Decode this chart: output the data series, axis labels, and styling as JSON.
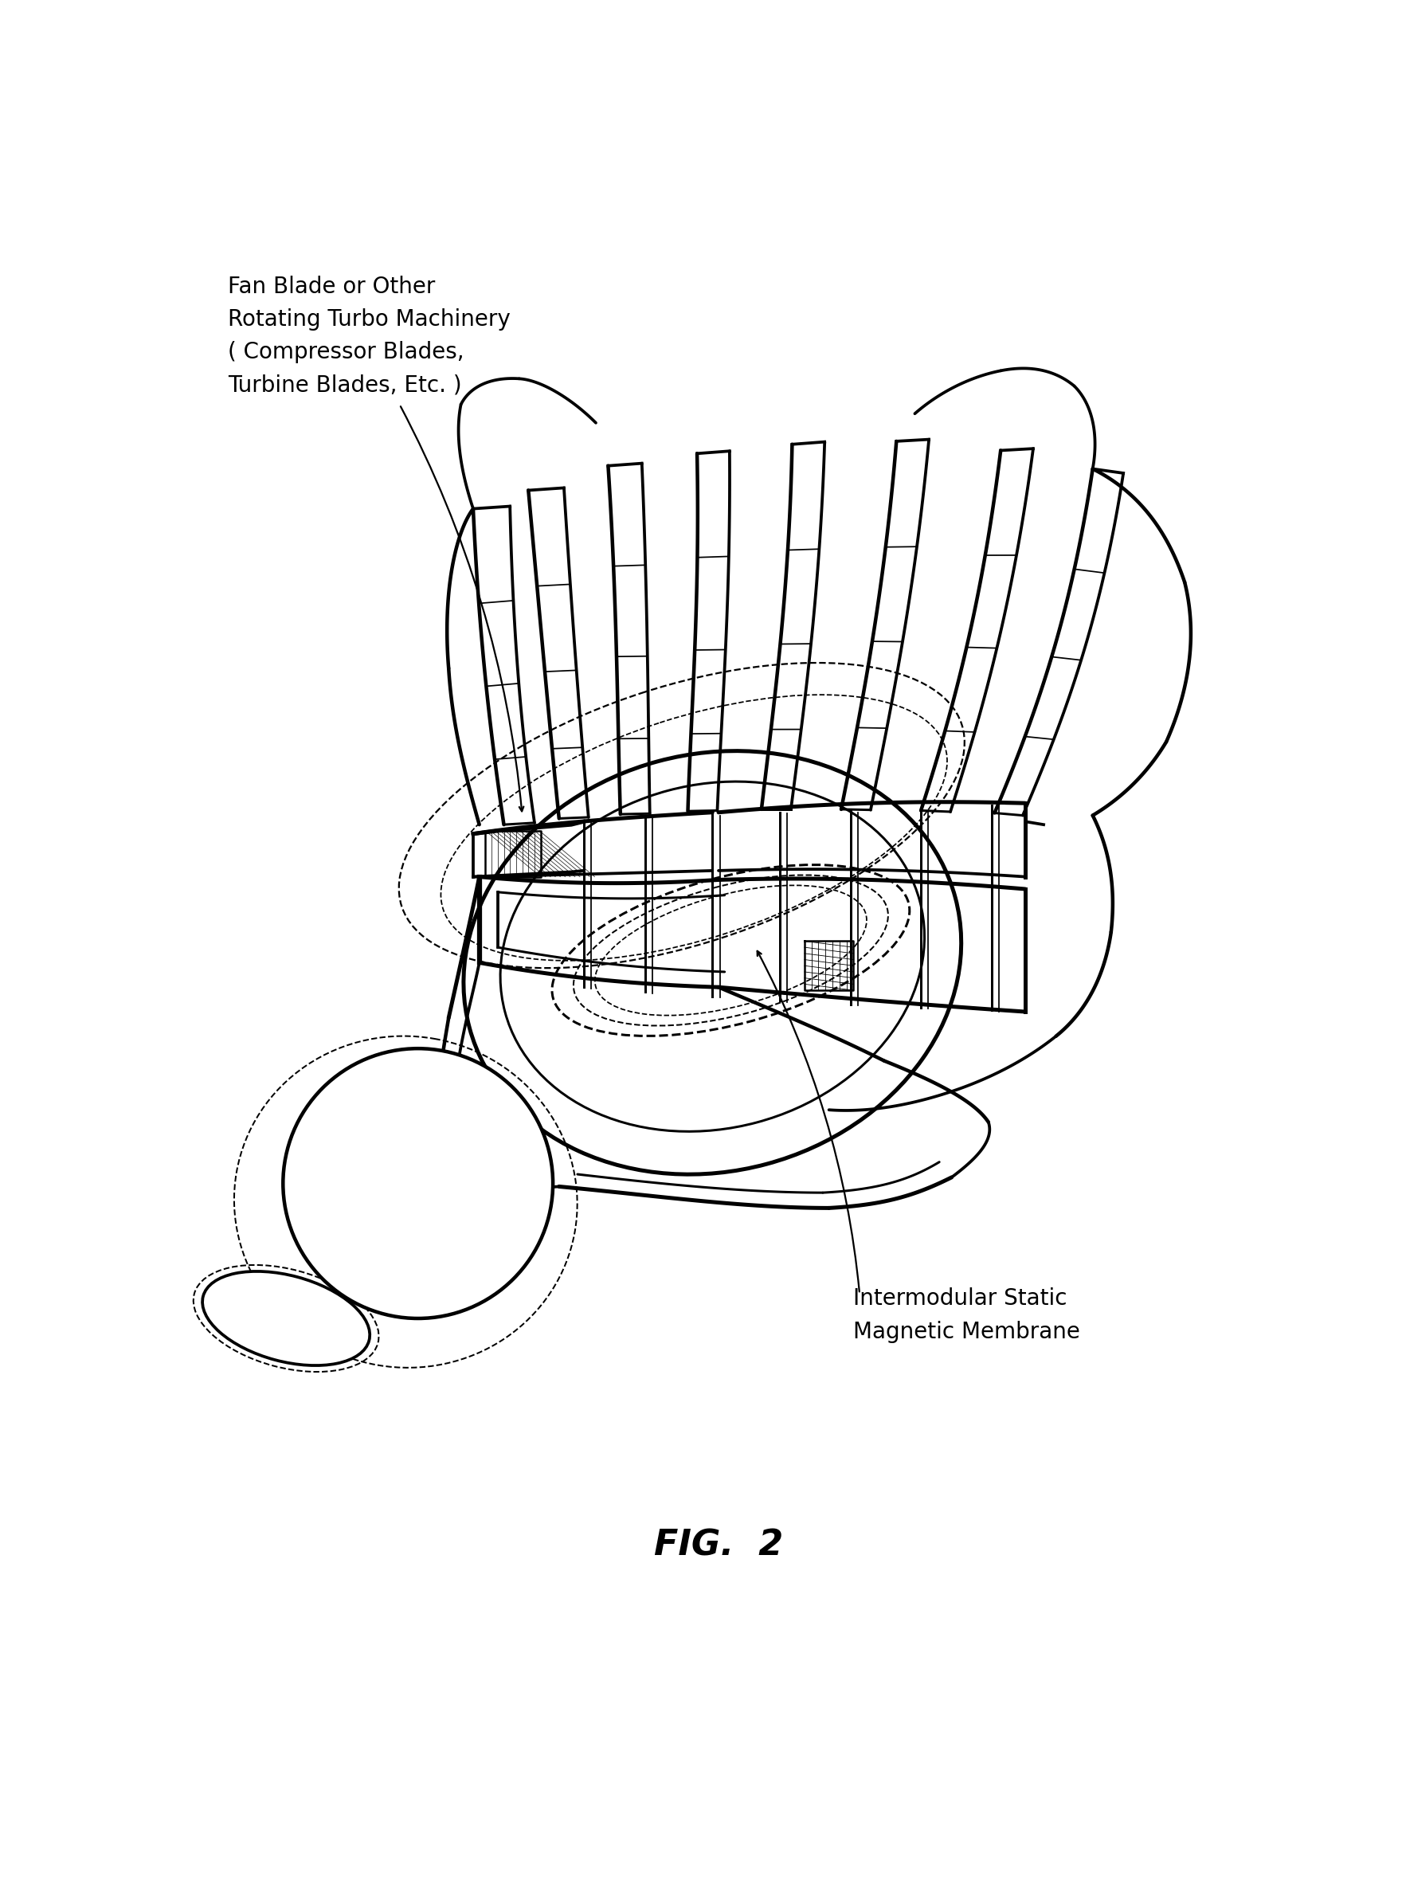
{
  "bg_color": "#ffffff",
  "line_color": "#000000",
  "lw": 1.8,
  "label1": "Fan Blade or Other\nRotating Turbo Machinery\n( Compressor Blades,\nTurbine Blades, Etc. )",
  "label2": "Intermodular Static\nMagnetic Membrane",
  "fig_label": "FIG.  2",
  "label_fontsize": 20,
  "fig_fontsize": 32
}
